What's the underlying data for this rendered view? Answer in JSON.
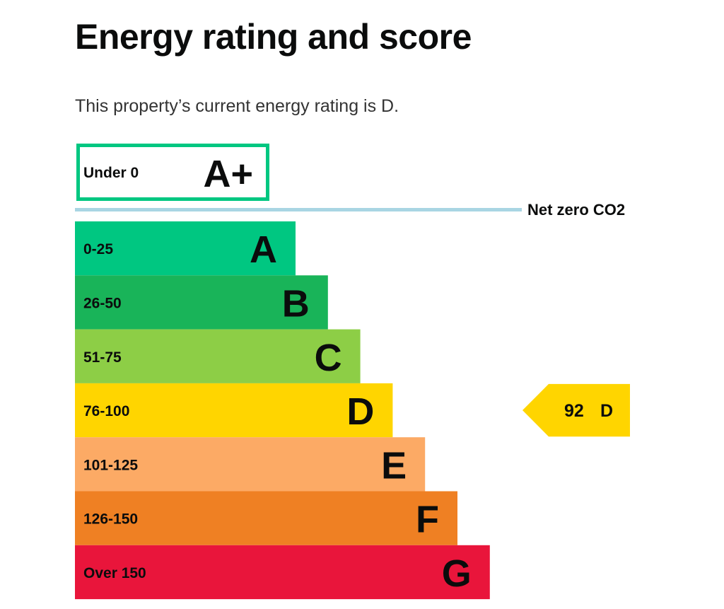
{
  "page": {
    "title": "Energy rating and score",
    "summary": "This property’s current energy rating is D."
  },
  "colors": {
    "A+": "#00c781",
    "A": "#00c781",
    "B": "#19b459",
    "C": "#8dce46",
    "D": "#ffd500",
    "E": "#fcaa65",
    "F": "#ef8023",
    "G": "#e9153b",
    "net_zero_line": "#a9d5e3",
    "text": "#0b0c0c"
  },
  "chart_data": {
    "type": "bar",
    "title": "",
    "bands": [
      {
        "letter": "A+",
        "range": "Under 0",
        "outlined": true
      },
      {
        "letter": "A",
        "range": "0-25"
      },
      {
        "letter": "B",
        "range": "26-50"
      },
      {
        "letter": "C",
        "range": "51-75"
      },
      {
        "letter": "D",
        "range": "76-100"
      },
      {
        "letter": "E",
        "range": "101-125"
      },
      {
        "letter": "F",
        "range": "126-150"
      },
      {
        "letter": "G",
        "range": "Over 150"
      }
    ],
    "net_zero_label": "Net zero CO2",
    "current": {
      "score": "92",
      "letter": "D"
    }
  }
}
